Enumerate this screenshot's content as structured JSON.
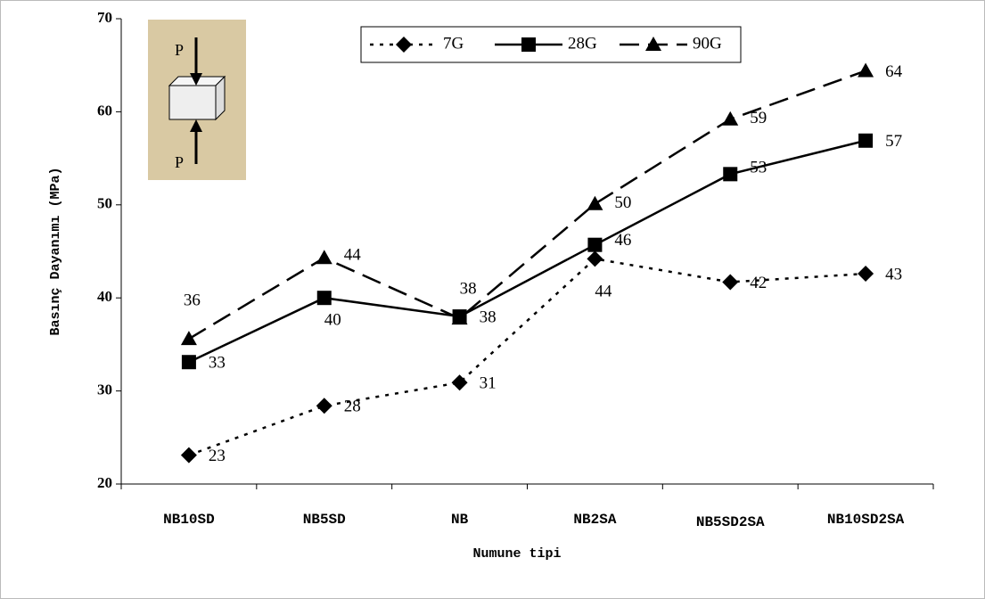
{
  "chart_data": {
    "type": "line",
    "x_label": "Numune tipi",
    "y_label": "Basınç Dayanımı (MPa)",
    "categories": [
      "NB10SD",
      "NB5SD",
      "NB",
      "NB2SA",
      "NB5SD2SA",
      "NB10SD2SA"
    ],
    "series": [
      {
        "name": "7G",
        "color": "#000000",
        "marker": "diamond",
        "dash": "dotted",
        "values": [
          23.1,
          28.4,
          30.9,
          44.2,
          41.7,
          42.6
        ],
        "value_labels": [
          "23",
          "28",
          "31",
          "44",
          "42",
          "43"
        ]
      },
      {
        "name": "28G",
        "color": "#000000",
        "marker": "square",
        "dash": "solid",
        "values": [
          33.1,
          40.0,
          38.0,
          45.7,
          53.3,
          56.9
        ],
        "value_labels": [
          "33",
          "40",
          "38",
          "46",
          "53",
          "57"
        ]
      },
      {
        "name": "90G",
        "color": "#000000",
        "marker": "triangle",
        "dash": "dashed",
        "values": [
          35.6,
          44.3,
          37.8,
          50.1,
          59.2,
          64.4
        ],
        "value_labels": [
          "36",
          "44",
          "38",
          "50",
          "59",
          "64"
        ]
      }
    ],
    "ylim": [
      20,
      70
    ],
    "yticks": [
      20,
      30,
      40,
      50,
      60,
      70
    ],
    "legend": "top",
    "inset_labels": [
      "P",
      "P"
    ]
  }
}
